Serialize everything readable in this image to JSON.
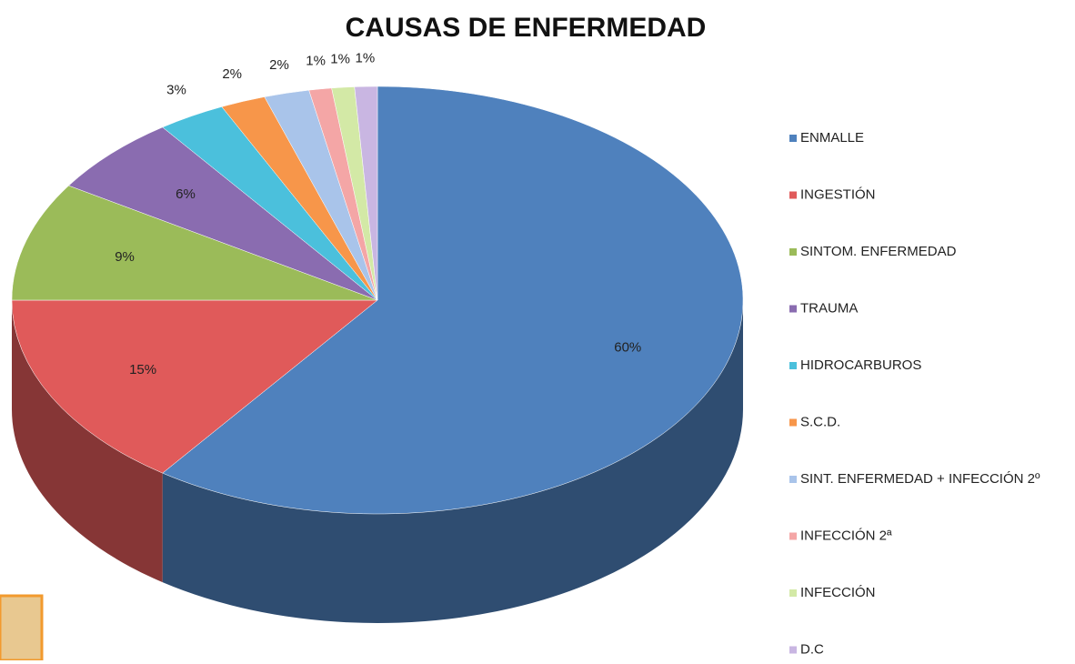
{
  "chart_data": {
    "type": "pie3d",
    "title": "CAUSAS DE ENFERMEDAD",
    "categories": [
      "ENMALLE",
      "INGESTIÓN",
      "SINTOM. ENFERMEDAD",
      "TRAUMA",
      "HIDROCARBUROS",
      "S.C.D.",
      "SINT. ENFERMEDAD + INFECCIÓN 2º",
      "INFECCIÓN 2ª",
      "INFECCIÓN",
      "D.C"
    ],
    "values": [
      60,
      15,
      9,
      6,
      3,
      2,
      2,
      1,
      1,
      1
    ],
    "value_labels": [
      "60%",
      "15%",
      "9%",
      "6%",
      "3%",
      "2%",
      "2%",
      "1%",
      "1%",
      "1%"
    ],
    "colors": [
      "#4f81bd",
      "#e05a5a",
      "#9bbb59",
      "#8a6cb0",
      "#4bc0dc",
      "#f7964a",
      "#a9c4ea",
      "#f4a6a6",
      "#d3e9a6",
      "#c9b6e2"
    ],
    "legend": "right"
  }
}
